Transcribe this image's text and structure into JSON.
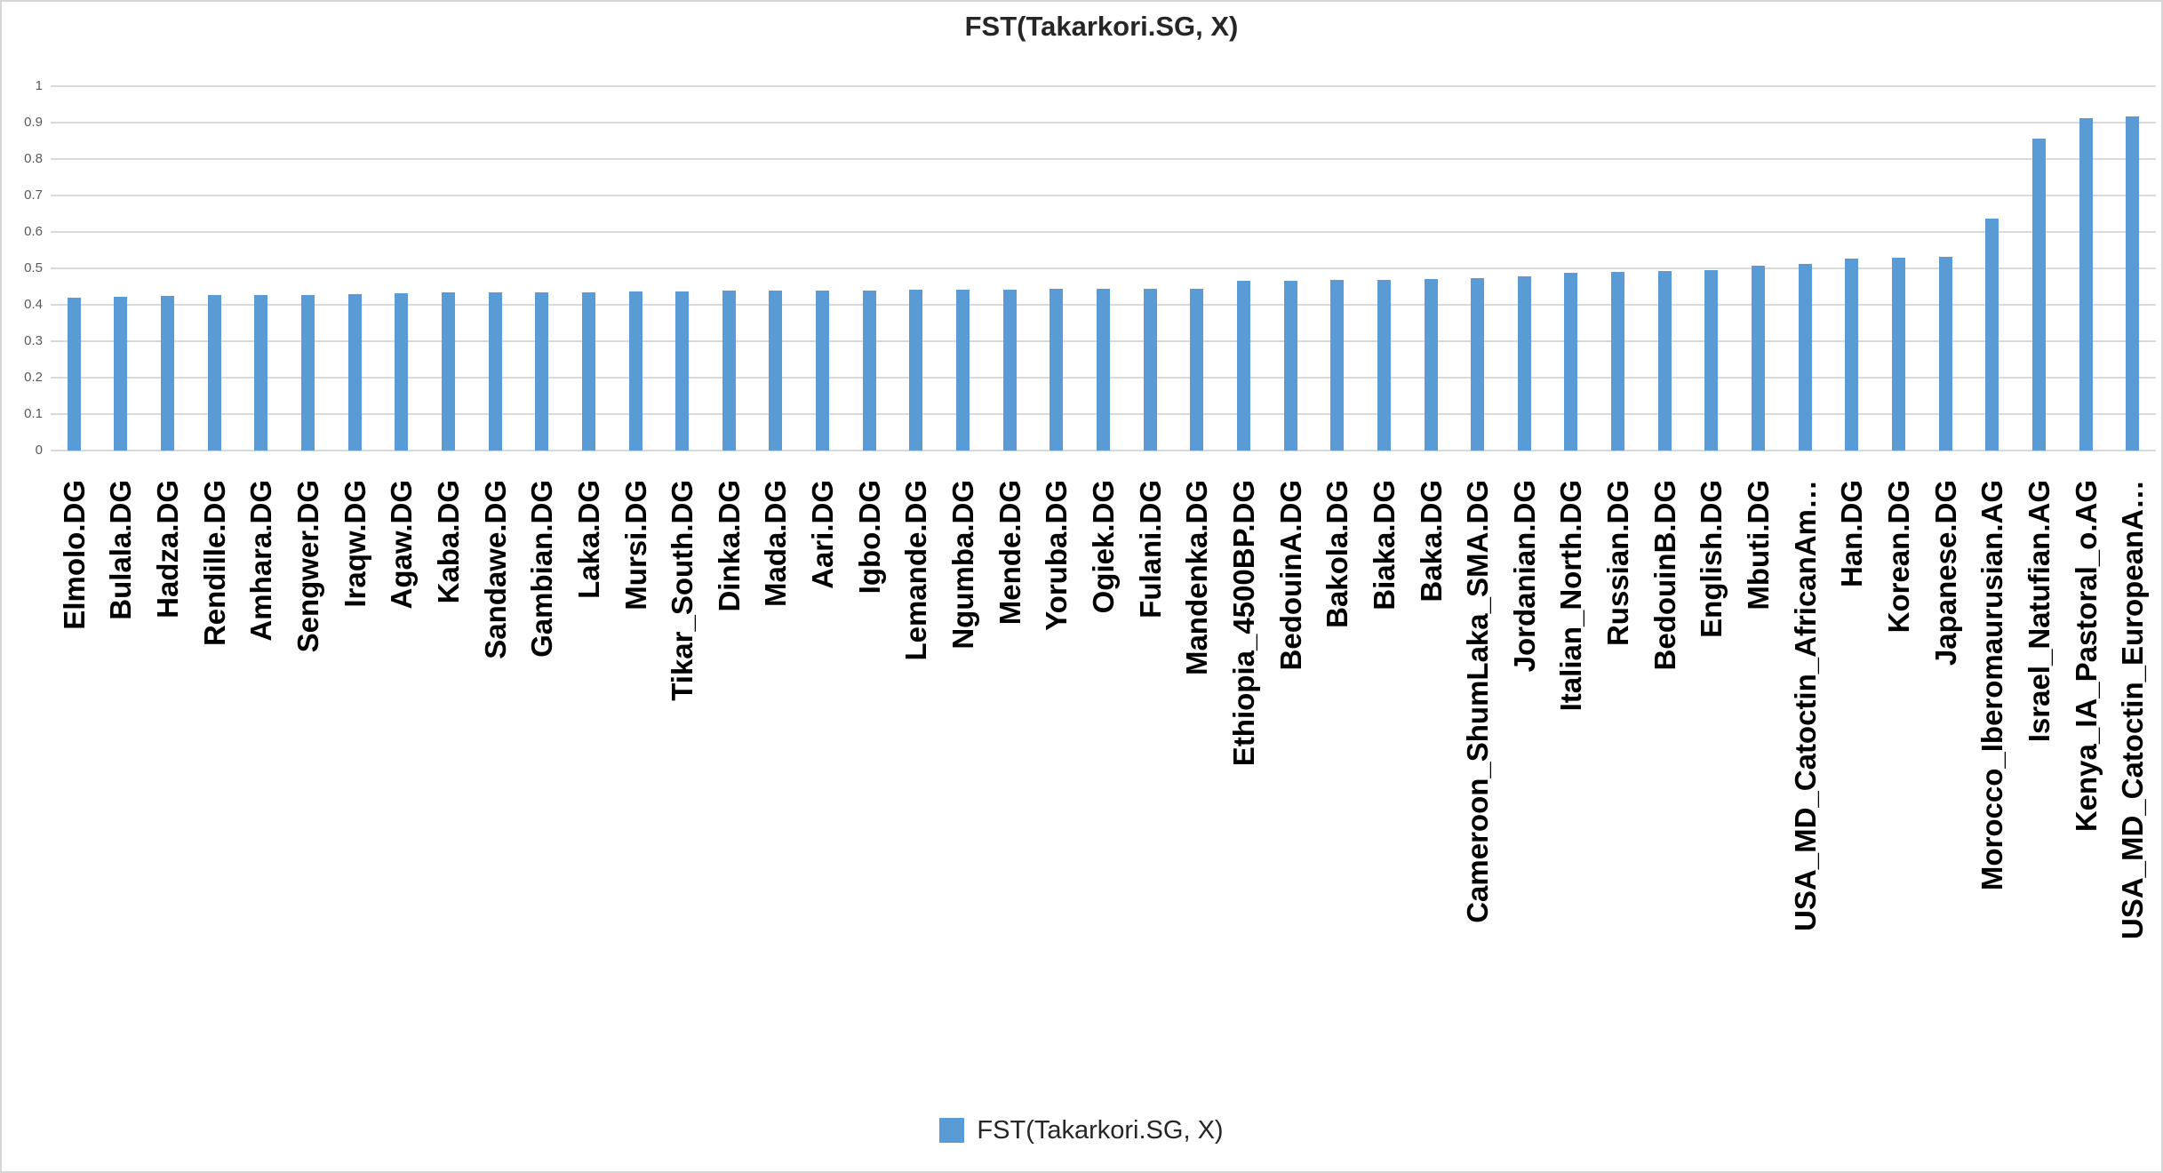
{
  "chart_data": {
    "type": "bar",
    "title": "FST(Takarkori.SG, X)",
    "xlabel": "",
    "ylabel": "",
    "ylim": [
      0,
      1
    ],
    "ytick_step": 0.1,
    "ytick_labels": [
      "0",
      "0.1",
      "0.2",
      "0.3",
      "0.4",
      "0.5",
      "0.6",
      "0.7",
      "0.8",
      "0.9",
      "1"
    ],
    "grid": "horizontal",
    "legend_position": "bottom",
    "bar_color": "#5B9BD5",
    "gridline_color": "#D9D9D9",
    "tick_label_color": "#595959",
    "categories": [
      "Elmolo.DG",
      "Bulala.DG",
      "Hadza.DG",
      "Rendille.DG",
      "Amhara.DG",
      "Sengwer.DG",
      "Iraqw.DG",
      "Agaw.DG",
      "Kaba.DG",
      "Sandawe.DG",
      "Gambian.DG",
      "Laka.DG",
      "Mursi.DG",
      "Tikar_South.DG",
      "Dinka.DG",
      "Mada.DG",
      "Aari.DG",
      "Igbo.DG",
      "Lemande.DG",
      "Ngumba.DG",
      "Mende.DG",
      "Yoruba.DG",
      "Ogiek.DG",
      "Fulani.DG",
      "Mandenka.DG",
      "Ethiopia_4500BP.DG",
      "BedouinA.DG",
      "Bakola.DG",
      "Biaka.DG",
      "Baka.DG",
      "Cameroon_ShumLaka_SMA.DG",
      "Jordanian.DG",
      "Italian_North.DG",
      "Russian.DG",
      "BedouinB.DG",
      "English.DG",
      "Mbuti.DG",
      "USA_MD_Catoctin_AfricanAm…",
      "Han.DG",
      "Korean.DG",
      "Japanese.DG",
      "Morocco_Iberomaurusian.AG",
      "Israel_Natufian.AG",
      "Kenya_IA_Pastoral_o.AG",
      "USA_MD_Catoctin_EuropeanA…"
    ],
    "series": [
      {
        "name": "FST(Takarkori.SG, X)",
        "values": [
          0.42,
          0.422,
          0.425,
          0.426,
          0.428,
          0.428,
          0.429,
          0.431,
          0.433,
          0.434,
          0.434,
          0.435,
          0.436,
          0.437,
          0.438,
          0.439,
          0.44,
          0.44,
          0.441,
          0.441,
          0.442,
          0.443,
          0.443,
          0.444,
          0.445,
          0.465,
          0.467,
          0.468,
          0.469,
          0.47,
          0.474,
          0.478,
          0.487,
          0.49,
          0.492,
          0.494,
          0.507,
          0.511,
          0.526,
          0.529,
          0.531,
          0.637,
          0.855,
          0.912,
          0.918
        ]
      }
    ]
  },
  "legend": {
    "label": "FST(Takarkori.SG, X)"
  }
}
